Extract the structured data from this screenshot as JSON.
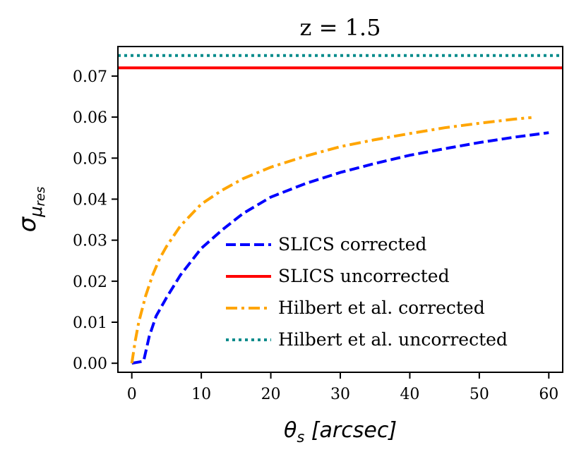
{
  "chart_data": {
    "type": "line",
    "title": "z = 1.5",
    "xlabel": "θs [arcsec]",
    "ylabel": "σμres",
    "xlim": [
      -2,
      62
    ],
    "ylim": [
      -0.0022,
      0.0772
    ],
    "x_ticks": [
      0,
      10,
      20,
      30,
      40,
      50,
      60
    ],
    "x_tick_labels": [
      "0",
      "10",
      "20",
      "30",
      "40",
      "50",
      "60"
    ],
    "y_ticks": [
      0.0,
      0.01,
      0.02,
      0.03,
      0.04,
      0.05,
      0.06,
      0.07
    ],
    "y_tick_labels": [
      "0.00",
      "0.01",
      "0.02",
      "0.03",
      "0.04",
      "0.05",
      "0.06",
      "0.07"
    ],
    "grid": false,
    "legend_position": "lower-right",
    "series": [
      {
        "name": "SLICS corrected",
        "color": "#0000ff",
        "style": "dashed",
        "x": [
          0,
          1.7,
          2.5,
          3.5,
          5,
          7,
          10,
          13,
          16,
          20,
          25,
          30,
          35,
          40,
          45,
          50,
          55,
          60
        ],
        "y": [
          0.0,
          0.0005,
          0.0065,
          0.0115,
          0.016,
          0.0215,
          0.028,
          0.0325,
          0.0365,
          0.0405,
          0.0438,
          0.0465,
          0.0487,
          0.0507,
          0.0523,
          0.0538,
          0.0551,
          0.0562
        ]
      },
      {
        "name": "SLICS uncorrected",
        "color": "#ff0000",
        "style": "solid",
        "x": [
          -2,
          62
        ],
        "y": [
          0.072,
          0.072
        ]
      },
      {
        "name": "Hilbert et al. corrected",
        "color": "#ffa500",
        "style": "dashdot",
        "x": [
          0,
          0.5,
          1,
          2,
          3,
          4,
          5,
          7,
          10,
          13,
          16,
          20,
          25,
          30,
          35,
          40,
          45,
          50,
          55,
          57.5
        ],
        "y": [
          0.0,
          0.0055,
          0.01,
          0.0165,
          0.0215,
          0.0255,
          0.0285,
          0.0335,
          0.0388,
          0.0422,
          0.045,
          0.0478,
          0.0505,
          0.0528,
          0.0545,
          0.056,
          0.0574,
          0.0585,
          0.0595,
          0.0599
        ]
      },
      {
        "name": "Hilbert et al. uncorrected",
        "color": "#008b8b",
        "style": "dotted",
        "x": [
          -2,
          62
        ],
        "y": [
          0.075,
          0.075
        ]
      }
    ]
  }
}
